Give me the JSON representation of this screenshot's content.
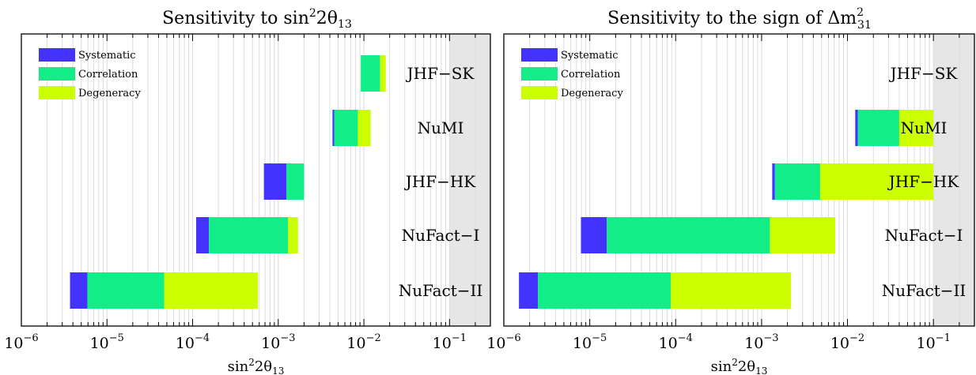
{
  "colors": {
    "systematic": "#4433ff",
    "correlation": "#11ee88",
    "degeneracy": "#ccff00",
    "excluded": "#e6e6e6",
    "grid": "#dcdcdc"
  },
  "chart_data": [
    {
      "type": "bar",
      "orientation": "horizontal",
      "stacked": true,
      "title": {
        "pre": "Sensitivity to sin",
        "sup": "2",
        "post": "2θ",
        "sub": "13"
      },
      "xlabel": {
        "pre": "sin",
        "sup": "2",
        "post": "2θ",
        "sub": "13"
      },
      "xscale": "log",
      "xlim": [
        1e-06,
        0.3
      ],
      "excluded_region": [
        0.1,
        0.3
      ],
      "grid": "vertical minor",
      "legend": {
        "position": "top-left",
        "entries": [
          "Systematic",
          "Correlation",
          "Degeneracy"
        ]
      },
      "tick_labels": [
        "10",
        "10",
        "10",
        "10",
        "10",
        "10"
      ],
      "tick_exponents": [
        "−6",
        "−5",
        "−4",
        "−3",
        "−2",
        "−1"
      ],
      "tick_values": [
        1e-06,
        1e-05,
        0.0001,
        0.001,
        0.01,
        0.1
      ],
      "categories": [
        "JHF−SK",
        "NuMI",
        "JHF−HK",
        "NuFact−I",
        "NuFact−II"
      ],
      "series": [
        {
          "name": "Systematic",
          "start": [
            0.0092,
            0.0043,
            0.00068,
            0.00011,
            3.7e-06
          ],
          "end": [
            0.0092,
            0.0045,
            0.00125,
            0.000155,
            5.9e-06
          ]
        },
        {
          "name": "Correlation",
          "start": [
            0.0092,
            0.0045,
            0.00125,
            0.000155,
            5.9e-06
          ],
          "end": [
            0.0155,
            0.0085,
            0.002,
            0.0013,
            4.65e-05
          ]
        },
        {
          "name": "Degeneracy",
          "start": [
            0.0155,
            0.0085,
            0.002,
            0.0013,
            4.65e-05
          ],
          "end": [
            0.018,
            0.012,
            0.002,
            0.0017,
            0.00058
          ]
        }
      ]
    },
    {
      "type": "bar",
      "orientation": "horizontal",
      "stacked": true,
      "title": {
        "pre": "Sensitivity to the sign of Δm",
        "sup": "2",
        "sub": "31"
      },
      "xlabel": {
        "pre": "sin",
        "sup": "2",
        "post": "2θ",
        "sub": "13"
      },
      "xscale": "log",
      "xlim": [
        1e-06,
        0.3
      ],
      "excluded_region": [
        0.1,
        0.3
      ],
      "grid": "vertical minor",
      "legend": {
        "position": "top-left",
        "entries": [
          "Systematic",
          "Correlation",
          "Degeneracy"
        ]
      },
      "tick_labels": [
        "10",
        "10",
        "10",
        "10",
        "10",
        "10"
      ],
      "tick_exponents": [
        "−6",
        "−5",
        "−4",
        "−3",
        "−2",
        "−1"
      ],
      "tick_values": [
        1e-06,
        1e-05,
        0.0001,
        0.001,
        0.01,
        0.1
      ],
      "categories": [
        "JHF−SK",
        "NuMI",
        "JHF−HK",
        "NuFact−I",
        "NuFact−II"
      ],
      "series": [
        {
          "name": "Systematic",
          "start": [
            0.1,
            0.0123,
            0.00133,
            7.9e-06,
            1.5e-06
          ],
          "end": [
            0.1,
            0.0132,
            0.00143,
            1.58e-05,
            2.5e-06
          ]
        },
        {
          "name": "Correlation",
          "start": [
            0.1,
            0.0132,
            0.00143,
            1.58e-05,
            2.5e-06
          ],
          "end": [
            0.1,
            0.04,
            0.0048,
            0.00125,
            8.77e-05
          ]
        },
        {
          "name": "Degeneracy",
          "start": [
            0.1,
            0.04,
            0.0048,
            0.00125,
            8.77e-05
          ],
          "end": [
            0.1,
            0.1,
            0.1,
            0.0072,
            0.0022
          ]
        }
      ]
    }
  ]
}
